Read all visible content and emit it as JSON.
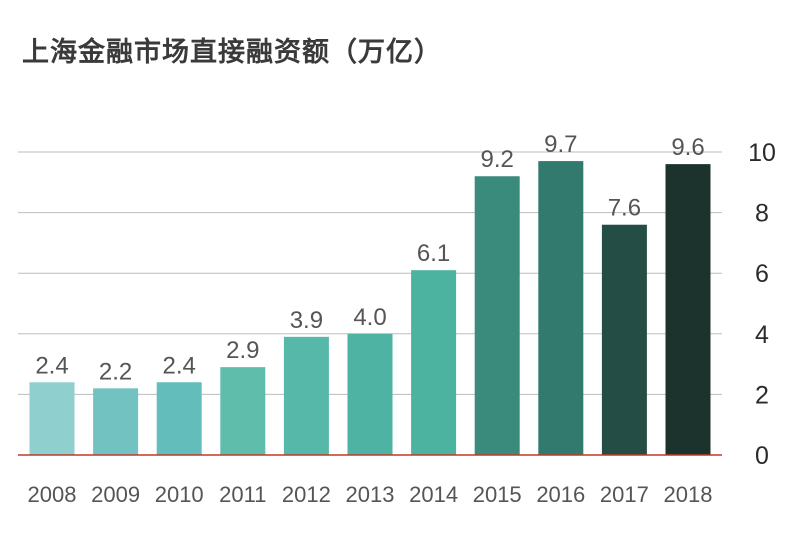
{
  "chart_data": {
    "type": "bar",
    "title": "上海金融市场直接融资额（万亿）",
    "xlabel": "",
    "ylabel": "",
    "categories": [
      "2008",
      "2009",
      "2010",
      "2011",
      "2012",
      "2013",
      "2014",
      "2015",
      "2016",
      "2017",
      "2018"
    ],
    "values": [
      2.4,
      2.2,
      2.4,
      2.9,
      3.9,
      4.0,
      6.1,
      9.2,
      9.7,
      7.6,
      9.6
    ],
    "value_labels": [
      "2.4",
      "2.2",
      "2.4",
      "2.9",
      "3.9",
      "4.0",
      "6.1",
      "9.2",
      "9.7",
      "7.6",
      "9.6"
    ],
    "ylim": [
      0,
      10
    ],
    "yticks": [
      0,
      2,
      4,
      6,
      8,
      10
    ],
    "y_axis_side": "right",
    "grid": true,
    "colors": [
      "#8fcfcd",
      "#71c2c0",
      "#63bdba",
      "#5fbdac",
      "#55b8a8",
      "#4fb3a3",
      "#4db3a1",
      "#3b8b7c",
      "#327a6d",
      "#244e45",
      "#1c332d"
    ],
    "baseline_color": "#c0392b",
    "grid_color": "#bdbdbd"
  }
}
